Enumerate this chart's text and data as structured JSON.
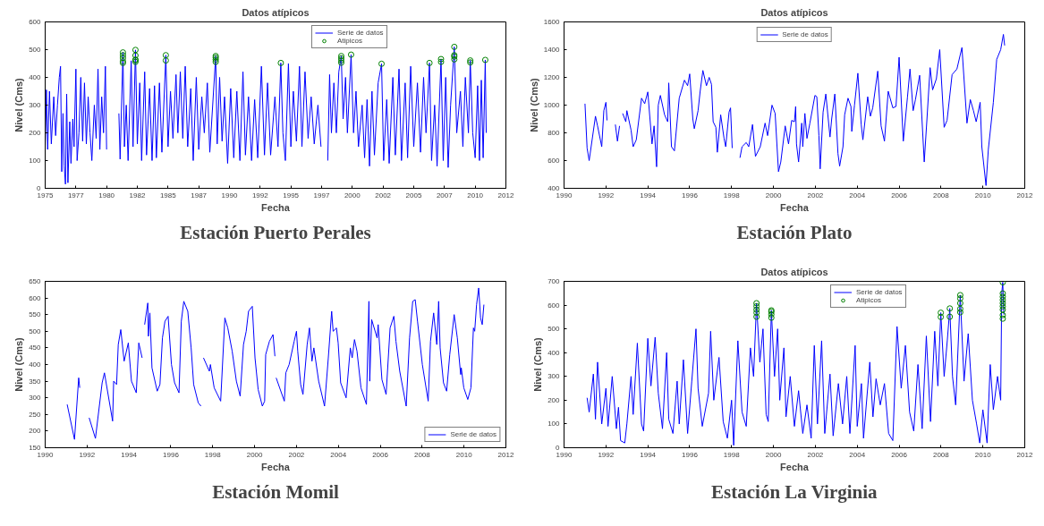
{
  "chart_data": [
    {
      "type": "line",
      "title": "Datos atípicos",
      "xlabel": "Fecha",
      "ylabel": "Nivel (Cms)",
      "annotations": [
        "Estación Puerto Perales"
      ],
      "legend": "top right",
      "xlim": [
        1975,
        2012.5
      ],
      "xticks": [
        1975,
        {
          "value": 1977.5,
          "label": "1977"
        },
        1980,
        {
          "value": 1982.5,
          "label": "1982"
        },
        1985,
        {
          "value": 1987.5,
          "label": "1987"
        },
        1990,
        {
          "value": 1992.5,
          "label": "1992"
        },
        1995,
        {
          "value": 1997.5,
          "label": "1997"
        },
        2000,
        {
          "value": 2002.5,
          "label": "2002"
        },
        2005,
        {
          "value": 2007.5,
          "label": "2007"
        },
        2010,
        {
          "value": 2012.5,
          "label": "2012"
        }
      ],
      "ylim": [
        0,
        600
      ],
      "yticks": [
        0,
        100,
        200,
        300,
        400,
        500,
        600
      ],
      "series": [
        {
          "name": "Serie de datos",
          "type": "line",
          "color": "#0000ff",
          "marker": "none",
          "line_style": "solid",
          "x": [
            1975.0,
            1975.1,
            1975.2,
            1975.35,
            1975.5,
            1975.7,
            1975.85,
            1976.0,
            1976.15,
            1976.25,
            1976.35,
            1976.45,
            1976.55,
            1976.65,
            1976.75,
            1976.85,
            1977.0,
            1977.1,
            1977.25,
            1977.35,
            1977.5,
            1977.6,
            1977.75,
            1977.9,
            1978.05,
            1978.2,
            1978.35,
            1978.5,
            1978.65,
            1978.8,
            1979.0,
            1979.15,
            1979.3,
            1979.45,
            1979.6,
            1979.75,
            1979.9,
            1980.0,
            1980.5,
            1981.0,
            1981.1,
            1981.33,
            1981.45,
            1981.6,
            1981.75,
            1982.0,
            1982.15,
            1982.35,
            1982.5,
            1982.7,
            1982.85,
            1983.1,
            1983.25,
            1983.5,
            1983.7,
            1983.9,
            1984.05,
            1984.3,
            1984.5,
            1984.82,
            1985.0,
            1985.2,
            1985.4,
            1985.65,
            1985.8,
            1986.0,
            1986.2,
            1986.4,
            1986.6,
            1986.85,
            1987.05,
            1987.3,
            1987.5,
            1987.75,
            1987.95,
            1988.2,
            1988.4,
            1988.88,
            1989.0,
            1989.2,
            1989.4,
            1989.6,
            1989.85,
            1990.1,
            1990.35,
            1990.6,
            1990.85,
            1991.1,
            1991.3,
            1991.55,
            1991.8,
            1992.05,
            1992.3,
            1992.6,
            1992.85,
            1993.1,
            1993.35,
            1993.7,
            1993.95,
            1994.18,
            1994.35,
            1994.55,
            1994.8,
            1995.0,
            1995.2,
            1995.45,
            1995.7,
            1995.9,
            1996.15,
            1996.4,
            1996.65,
            1996.9,
            1997.2,
            1997.45,
            1997.7,
            1998.0,
            1998.15,
            1998.3,
            1998.5,
            1998.7,
            1998.9,
            1999.1,
            1999.25,
            1999.45,
            1999.6,
            1999.9,
            2000.1,
            2000.3,
            2000.5,
            2000.8,
            2001.0,
            2001.2,
            2001.4,
            2001.6,
            2001.8,
            2002.1,
            2002.38,
            2002.55,
            2002.8,
            2003.0,
            2003.3,
            2003.5,
            2003.8,
            2004.0,
            2004.3,
            2004.5,
            2004.75,
            2005.0,
            2005.3,
            2005.55,
            2005.8,
            2006.0,
            2006.28,
            2006.45,
            2006.7,
            2006.9,
            2007.22,
            2007.4,
            2007.6,
            2007.8,
            2008.0,
            2008.3,
            2008.5,
            2008.8,
            2009.0,
            2009.2,
            2009.45,
            2009.6,
            2009.8,
            2010.0,
            2010.2,
            2010.35,
            2010.5,
            2010.65,
            2010.82,
            2010.9
          ],
          "values": [
            150,
            355,
            140,
            350,
            160,
            330,
            190,
            300,
            400,
            440,
            60,
            270,
            80,
            15,
            340,
            20,
            240,
            90,
            250,
            150,
            430,
            100,
            200,
            400,
            170,
            380,
            160,
            330,
            200,
            100,
            300,
            180,
            430,
            140,
            330,
            200,
            440,
            140,
            null,
            270,
            105,
            490,
            150,
            300,
            100,
            460,
            150,
            499,
            160,
            380,
            100,
            420,
            120,
            360,
            100,
            370,
            110,
            380,
            130,
            480,
            150,
            350,
            180,
            410,
            200,
            420,
            180,
            440,
            150,
            360,
            100,
            400,
            140,
            330,
            200,
            380,
            130,
            477,
            160,
            400,
            170,
            330,
            90,
            360,
            110,
            350,
            100,
            420,
            120,
            330,
            100,
            320,
            110,
            440,
            120,
            380,
            120,
            330,
            150,
            452,
            200,
            100,
            450,
            150,
            350,
            170,
            440,
            150,
            420,
            180,
            330,
            160,
            300,
            150,
            null,
            100,
            410,
            200,
            380,
            200,
            420,
            477,
            250,
            400,
            200,
            482,
            200,
            350,
            150,
            300,
            110,
            320,
            80,
            350,
            120,
            380,
            449,
            100,
            320,
            90,
            400,
            120,
            430,
            100,
            380,
            110,
            440,
            150,
            380,
            130,
            400,
            200,
            452,
            100,
            300,
            80,
            466,
            100,
            400,
            75,
            300,
            510,
            200,
            350,
            150,
            400,
            200,
            461,
            200,
            110,
            370,
            100,
            390,
            110,
            463,
            200
          ]
        },
        {
          "name": "Atipicos",
          "type": "scatter",
          "color": "#008000",
          "marker": "circle",
          "x": [
            1981.33,
            1981.33,
            1981.33,
            1981.33,
            1981.33,
            1982.35,
            1982.35,
            1982.35,
            1982.35,
            1982.35,
            1984.82,
            1984.82,
            1988.88,
            1988.88,
            1988.88,
            1988.88,
            1994.18,
            1999.1,
            1999.1,
            1999.1,
            1999.1,
            1999.9,
            2002.38,
            2006.28,
            2007.22,
            2007.22,
            2008.3,
            2008.3,
            2008.3,
            2008.3,
            2009.6,
            2009.6,
            2010.82
          ],
          "values": [
            490,
            480,
            470,
            458,
            452,
            499,
            479,
            464,
            462,
            456,
            480,
            461,
            477,
            471,
            464,
            456,
            452,
            477,
            469,
            461,
            453,
            482,
            449,
            452,
            466,
            456,
            510,
            480,
            475,
            465,
            461,
            454,
            463
          ]
        }
      ]
    },
    {
      "type": "line",
      "title": "Datos atípicos",
      "xlabel": "Fecha",
      "ylabel": "Nivel (Cms)",
      "annotations": [
        "Estación Plato"
      ],
      "legend": "top",
      "xlim": [
        1990,
        2012
      ],
      "xticks": [
        1990,
        1992,
        1994,
        1996,
        1998,
        2000,
        2002,
        2004,
        2006,
        2008,
        2010,
        2012
      ],
      "ylim": [
        400,
        1600
      ],
      "yticks": [
        400,
        600,
        800,
        1000,
        1200,
        1400,
        1600
      ],
      "series": [
        {
          "name": "Serie de datos",
          "type": "line",
          "color": "#0000ff",
          "marker": "none",
          "line_style": "solid",
          "x": [
            1991.0,
            1991.1,
            1991.2,
            1991.5,
            1991.6,
            1991.8,
            1991.9,
            1992.0,
            1992.05,
            1992.25,
            1992.45,
            1992.55,
            1992.65,
            1992.72,
            1992.8,
            1992.95,
            1993.0,
            1993.2,
            1993.3,
            1993.45,
            1993.7,
            1993.85,
            1994.0,
            1994.2,
            1994.3,
            1994.42,
            1994.5,
            1994.6,
            1994.8,
            1994.95,
            1995.0,
            1995.13,
            1995.27,
            1995.5,
            1995.75,
            1995.9,
            1996.0,
            1996.15,
            1996.22,
            1996.4,
            1996.5,
            1996.63,
            1996.8,
            1996.93,
            1997.04,
            1997.12,
            1997.25,
            1997.32,
            1997.48,
            1997.64,
            1997.72,
            1997.88,
            1997.95,
            1998.03,
            1998.2,
            1998.4,
            1998.5,
            1998.7,
            1998.82,
            1999.0,
            1999.14,
            1999.37,
            1999.6,
            1999.72,
            1999.93,
            2000.08,
            2000.24,
            2000.35,
            2000.56,
            2000.72,
            2000.87,
            2001.0,
            2001.06,
            2001.1,
            2001.2,
            2001.35,
            2001.4,
            2001.5,
            2001.6,
            2001.74,
            2001.98,
            2002.07,
            2002.17,
            2002.23,
            2002.37,
            2002.5,
            2002.7,
            2002.78,
            2002.93,
            2003.08,
            2003.16,
            2003.32,
            2003.4,
            2003.56,
            2003.7,
            2003.74,
            2003.87,
            2004.03,
            2004.19,
            2004.27,
            2004.5,
            2004.63,
            2004.74,
            2004.98,
            2005.14,
            2005.3,
            2005.48,
            2005.7,
            2005.85,
            2006.0,
            2006.2,
            2006.4,
            2006.52,
            2006.67,
            2006.78,
            2006.98,
            2007.2,
            2007.33,
            2007.48,
            2007.6,
            2007.78,
            2007.94,
            2008.15,
            2008.29,
            2008.53,
            2008.76,
            2009.0,
            2009.24,
            2009.4,
            2009.55,
            2009.68,
            2009.87,
            2009.95,
            2010.15,
            2010.26,
            2010.5,
            2010.66,
            2010.85,
            2010.98,
            2011.04
          ],
          "values": [
            1010,
            690,
            600,
            920,
            850,
            700,
            960,
            1020,
            890,
            null,
            860,
            740,
            850,
            null,
            940,
            880,
            960,
            820,
            700,
            750,
            1050,
            1010,
            1095,
            720,
            850,
            555,
            1000,
            1070,
            930,
            880,
            1160,
            700,
            670,
            1050,
            1180,
            1140,
            1225,
            900,
            830,
            960,
            1100,
            1250,
            1140,
            1200,
            1150,
            880,
            840,
            660,
            930,
            760,
            700,
            950,
            980,
            690,
            null,
            620,
            700,
            730,
            700,
            860,
            630,
            700,
            870,
            780,
            1000,
            940,
            520,
            590,
            850,
            720,
            890,
            880,
            990,
            720,
            590,
            870,
            700,
            940,
            760,
            870,
            1070,
            1060,
            780,
            540,
            950,
            1080,
            770,
            900,
            1080,
            650,
            560,
            700,
            930,
            1050,
            990,
            810,
            1000,
            1230,
            860,
            750,
            1060,
            920,
            980,
            1245,
            850,
            740,
            1100,
            980,
            990,
            1345,
            740,
            1060,
            1260,
            960,
            1040,
            1215,
            590,
            900,
            1270,
            1110,
            1190,
            1400,
            840,
            890,
            1220,
            1260,
            1415,
            870,
            1040,
            960,
            880,
            1020,
            700,
            420,
            680,
            1020,
            1330,
            1400,
            1510,
            1430
          ]
        }
      ]
    },
    {
      "type": "line",
      "xlabel": "Fecha",
      "ylabel": "Nivel (Cms)",
      "annotations": [
        "Estación Momil"
      ],
      "legend": "bottom right",
      "xlim": [
        1990,
        2012
      ],
      "xticks": [
        1990,
        1992,
        1994,
        1996,
        1998,
        2000,
        2002,
        2004,
        2006,
        2008,
        2010,
        2012
      ],
      "ylim": [
        150,
        650
      ],
      "yticks": [
        150,
        200,
        250,
        300,
        350,
        400,
        450,
        500,
        550,
        600,
        650
      ],
      "series": [
        {
          "name": "Serie de datos",
          "type": "line",
          "color": "#0000ff",
          "marker": "none",
          "line_style": "solid",
          "x": [
            1991.05,
            1991.4,
            1991.6,
            1991.65,
            1991.85,
            1992.1,
            1992.4,
            1992.72,
            1992.83,
            1993.22,
            1993.27,
            1993.41,
            1993.49,
            1993.61,
            1993.77,
            1993.97,
            1994.12,
            1994.35,
            1994.47,
            1994.63,
            1994.69,
            1994.75,
            1994.9,
            1994.93,
            1995.0,
            1995.1,
            1995.35,
            1995.48,
            1995.6,
            1995.72,
            1995.87,
            1996.03,
            1996.18,
            1996.39,
            1996.5,
            1996.62,
            1996.81,
            1996.97,
            1997.09,
            1997.31,
            1997.44,
            1997.5,
            1997.56,
            1997.84,
            1997.89,
            1998.07,
            1998.38,
            1998.58,
            1998.72,
            1998.93,
            1999.13,
            1999.31,
            1999.47,
            1999.6,
            1999.71,
            1999.89,
            2000.02,
            2000.17,
            2000.37,
            2000.48,
            2000.53,
            2000.71,
            2000.88,
            2000.97,
            2001.0,
            2001.03,
            2001.42,
            2001.49,
            2001.65,
            2001.89,
            2002.0,
            2002.06,
            2002.2,
            2002.31,
            2002.51,
            2002.62,
            2002.74,
            2002.83,
            2003.06,
            2003.34,
            2003.52,
            2003.68,
            2003.75,
            2003.91,
            2003.99,
            2004.11,
            2004.37,
            2004.57,
            2004.66,
            2004.77,
            2004.89,
            2005.08,
            2005.34,
            2005.46,
            2005.5,
            2005.59,
            2005.85,
            2005.9,
            2006.08,
            2006.28,
            2006.47,
            2006.65,
            2006.75,
            2006.93,
            2007.24,
            2007.4,
            2007.55,
            2007.67,
            2007.78,
            2008.01,
            2008.29,
            2008.4,
            2008.55,
            2008.7,
            2008.79,
            2008.86,
            2009.02,
            2009.17,
            2009.32,
            2009.53,
            2009.68,
            2009.84,
            2009.87,
            2009.99,
            2010.18,
            2010.33,
            2010.45,
            2010.51,
            2010.6,
            2010.7,
            2010.79,
            2010.87,
            2010.95
          ],
          "values": [
            280,
            175,
            360,
            330,
            null,
            240,
            178,
            345,
            375,
            230,
            350,
            340,
            460,
            505,
            410,
            465,
            350,
            315,
            465,
            420,
            null,
            520,
            585,
            485,
            555,
            390,
            320,
            340,
            480,
            530,
            545,
            400,
            345,
            315,
            530,
            590,
            560,
            450,
            340,
            285,
            275,
            null,
            420,
            380,
            400,
            330,
            290,
            540,
            510,
            440,
            350,
            305,
            460,
            500,
            560,
            575,
            420,
            325,
            275,
            290,
            430,
            470,
            490,
            425,
            null,
            360,
            290,
            375,
            400,
            470,
            500,
            440,
            340,
            310,
            460,
            510,
            410,
            450,
            350,
            275,
            420,
            560,
            500,
            510,
            465,
            345,
            300,
            450,
            420,
            475,
            440,
            330,
            280,
            590,
            350,
            535,
            480,
            520,
            355,
            310,
            510,
            545,
            470,
            380,
            275,
            480,
            590,
            595,
            530,
            400,
            290,
            470,
            555,
            460,
            590,
            450,
            345,
            320,
            430,
            550,
            480,
            370,
            390,
            330,
            295,
            330,
            510,
            500,
            580,
            630,
            540,
            520,
            580
          ]
        }
      ]
    },
    {
      "type": "line",
      "title": "Datos atípicos",
      "xlabel": "Fecha",
      "ylabel": "Nivel (Cms)",
      "annotations": [
        "Estación La Virginia"
      ],
      "legend": "top right",
      "xlim": [
        1990,
        2012
      ],
      "xticks": [
        1990,
        1992,
        1994,
        1996,
        1998,
        2000,
        2002,
        2004,
        2006,
        2008,
        2010,
        2012
      ],
      "ylim": [
        0,
        700
      ],
      "yticks": [
        0,
        100,
        200,
        300,
        400,
        500,
        600,
        700
      ],
      "series": [
        {
          "name": "Serie de datos",
          "type": "line",
          "color": "#0000ff",
          "marker": "none",
          "line_style": "solid",
          "x": [
            1991.1,
            1991.2,
            1991.4,
            1991.5,
            1991.6,
            1991.8,
            1992.0,
            1992.1,
            1992.3,
            1992.5,
            1992.6,
            1992.7,
            1992.9,
            1993.0,
            1993.2,
            1993.3,
            1993.5,
            1993.7,
            1993.8,
            1994.0,
            1994.15,
            1994.35,
            1994.5,
            1994.7,
            1994.9,
            1995.0,
            1995.2,
            1995.4,
            1995.5,
            1995.7,
            1995.9,
            1996.1,
            1996.3,
            1996.4,
            1996.6,
            1996.9,
            1997.0,
            1997.15,
            1997.4,
            1997.6,
            1997.8,
            1998.0,
            1998.1,
            1998.3,
            1998.5,
            1998.7,
            1998.9,
            1999.05,
            1999.19,
            1999.35,
            1999.5,
            1999.65,
            1999.75,
            1999.9,
            2000.05,
            2000.2,
            2000.3,
            2000.5,
            2000.6,
            2000.8,
            2001.0,
            2001.2,
            2001.4,
            2001.6,
            2001.8,
            2001.95,
            2002.1,
            2002.3,
            2002.45,
            2002.7,
            2002.85,
            2003.1,
            2003.3,
            2003.5,
            2003.65,
            2003.9,
            2004.0,
            2004.2,
            2004.3,
            2004.6,
            2004.75,
            2004.9,
            2005.1,
            2005.3,
            2005.5,
            2005.7,
            2005.9,
            2006.1,
            2006.3,
            2006.5,
            2006.7,
            2006.9,
            2007.1,
            2007.3,
            2007.5,
            2007.7,
            2007.85,
            2007.99,
            2008.15,
            2008.3,
            2008.42,
            2008.55,
            2008.7,
            2008.92,
            2009.1,
            2009.3,
            2009.5,
            2009.7,
            2009.85,
            2010.0,
            2010.2,
            2010.35,
            2010.5,
            2010.7,
            2010.85,
            2010.9,
            2010.95,
            2011.0
          ],
          "values": [
            210,
            150,
            310,
            120,
            360,
            100,
            250,
            90,
            300,
            80,
            170,
            30,
            20,
            100,
            300,
            140,
            440,
            100,
            70,
            460,
            260,
            465,
            230,
            80,
            400,
            120,
            60,
            280,
            100,
            370,
            60,
            280,
            500,
            250,
            90,
            230,
            490,
            200,
            380,
            110,
            40,
            200,
            10,
            450,
            150,
            90,
            420,
            300,
            608,
            360,
            500,
            140,
            110,
            578,
            300,
            500,
            200,
            420,
            130,
            300,
            90,
            240,
            60,
            180,
            40,
            430,
            100,
            450,
            60,
            310,
            50,
            270,
            100,
            300,
            60,
            430,
            90,
            270,
            40,
            360,
            130,
            290,
            180,
            270,
            60,
            30,
            510,
            250,
            430,
            150,
            70,
            350,
            80,
            470,
            110,
            490,
            260,
            568,
            300,
            450,
            586,
            300,
            180,
            642,
            280,
            480,
            200,
            100,
            20,
            160,
            20,
            350,
            160,
            300,
            200,
            650,
            696,
            560
          ]
        },
        {
          "name": "Atipicos",
          "type": "scatter",
          "color": "#008000",
          "marker": "circle",
          "x": [
            1999.19,
            1999.19,
            1999.19,
            1999.19,
            1999.19,
            1999.9,
            1999.9,
            1999.9,
            1999.9,
            2007.99,
            2007.99,
            2008.42,
            2008.42,
            2008.92,
            2008.92,
            2008.92,
            2008.92,
            2008.92,
            2010.95,
            2010.95,
            2010.95,
            2010.95,
            2010.95,
            2010.95,
            2010.95,
            2010.95,
            2010.95
          ],
          "values": [
            608,
            595,
            581,
            568,
            551,
            578,
            572,
            561,
            547,
            568,
            550,
            586,
            551,
            642,
            628,
            608,
            584,
            570,
            696,
            649,
            635,
            622,
            608,
            595,
            581,
            558,
            543
          ]
        }
      ]
    }
  ]
}
